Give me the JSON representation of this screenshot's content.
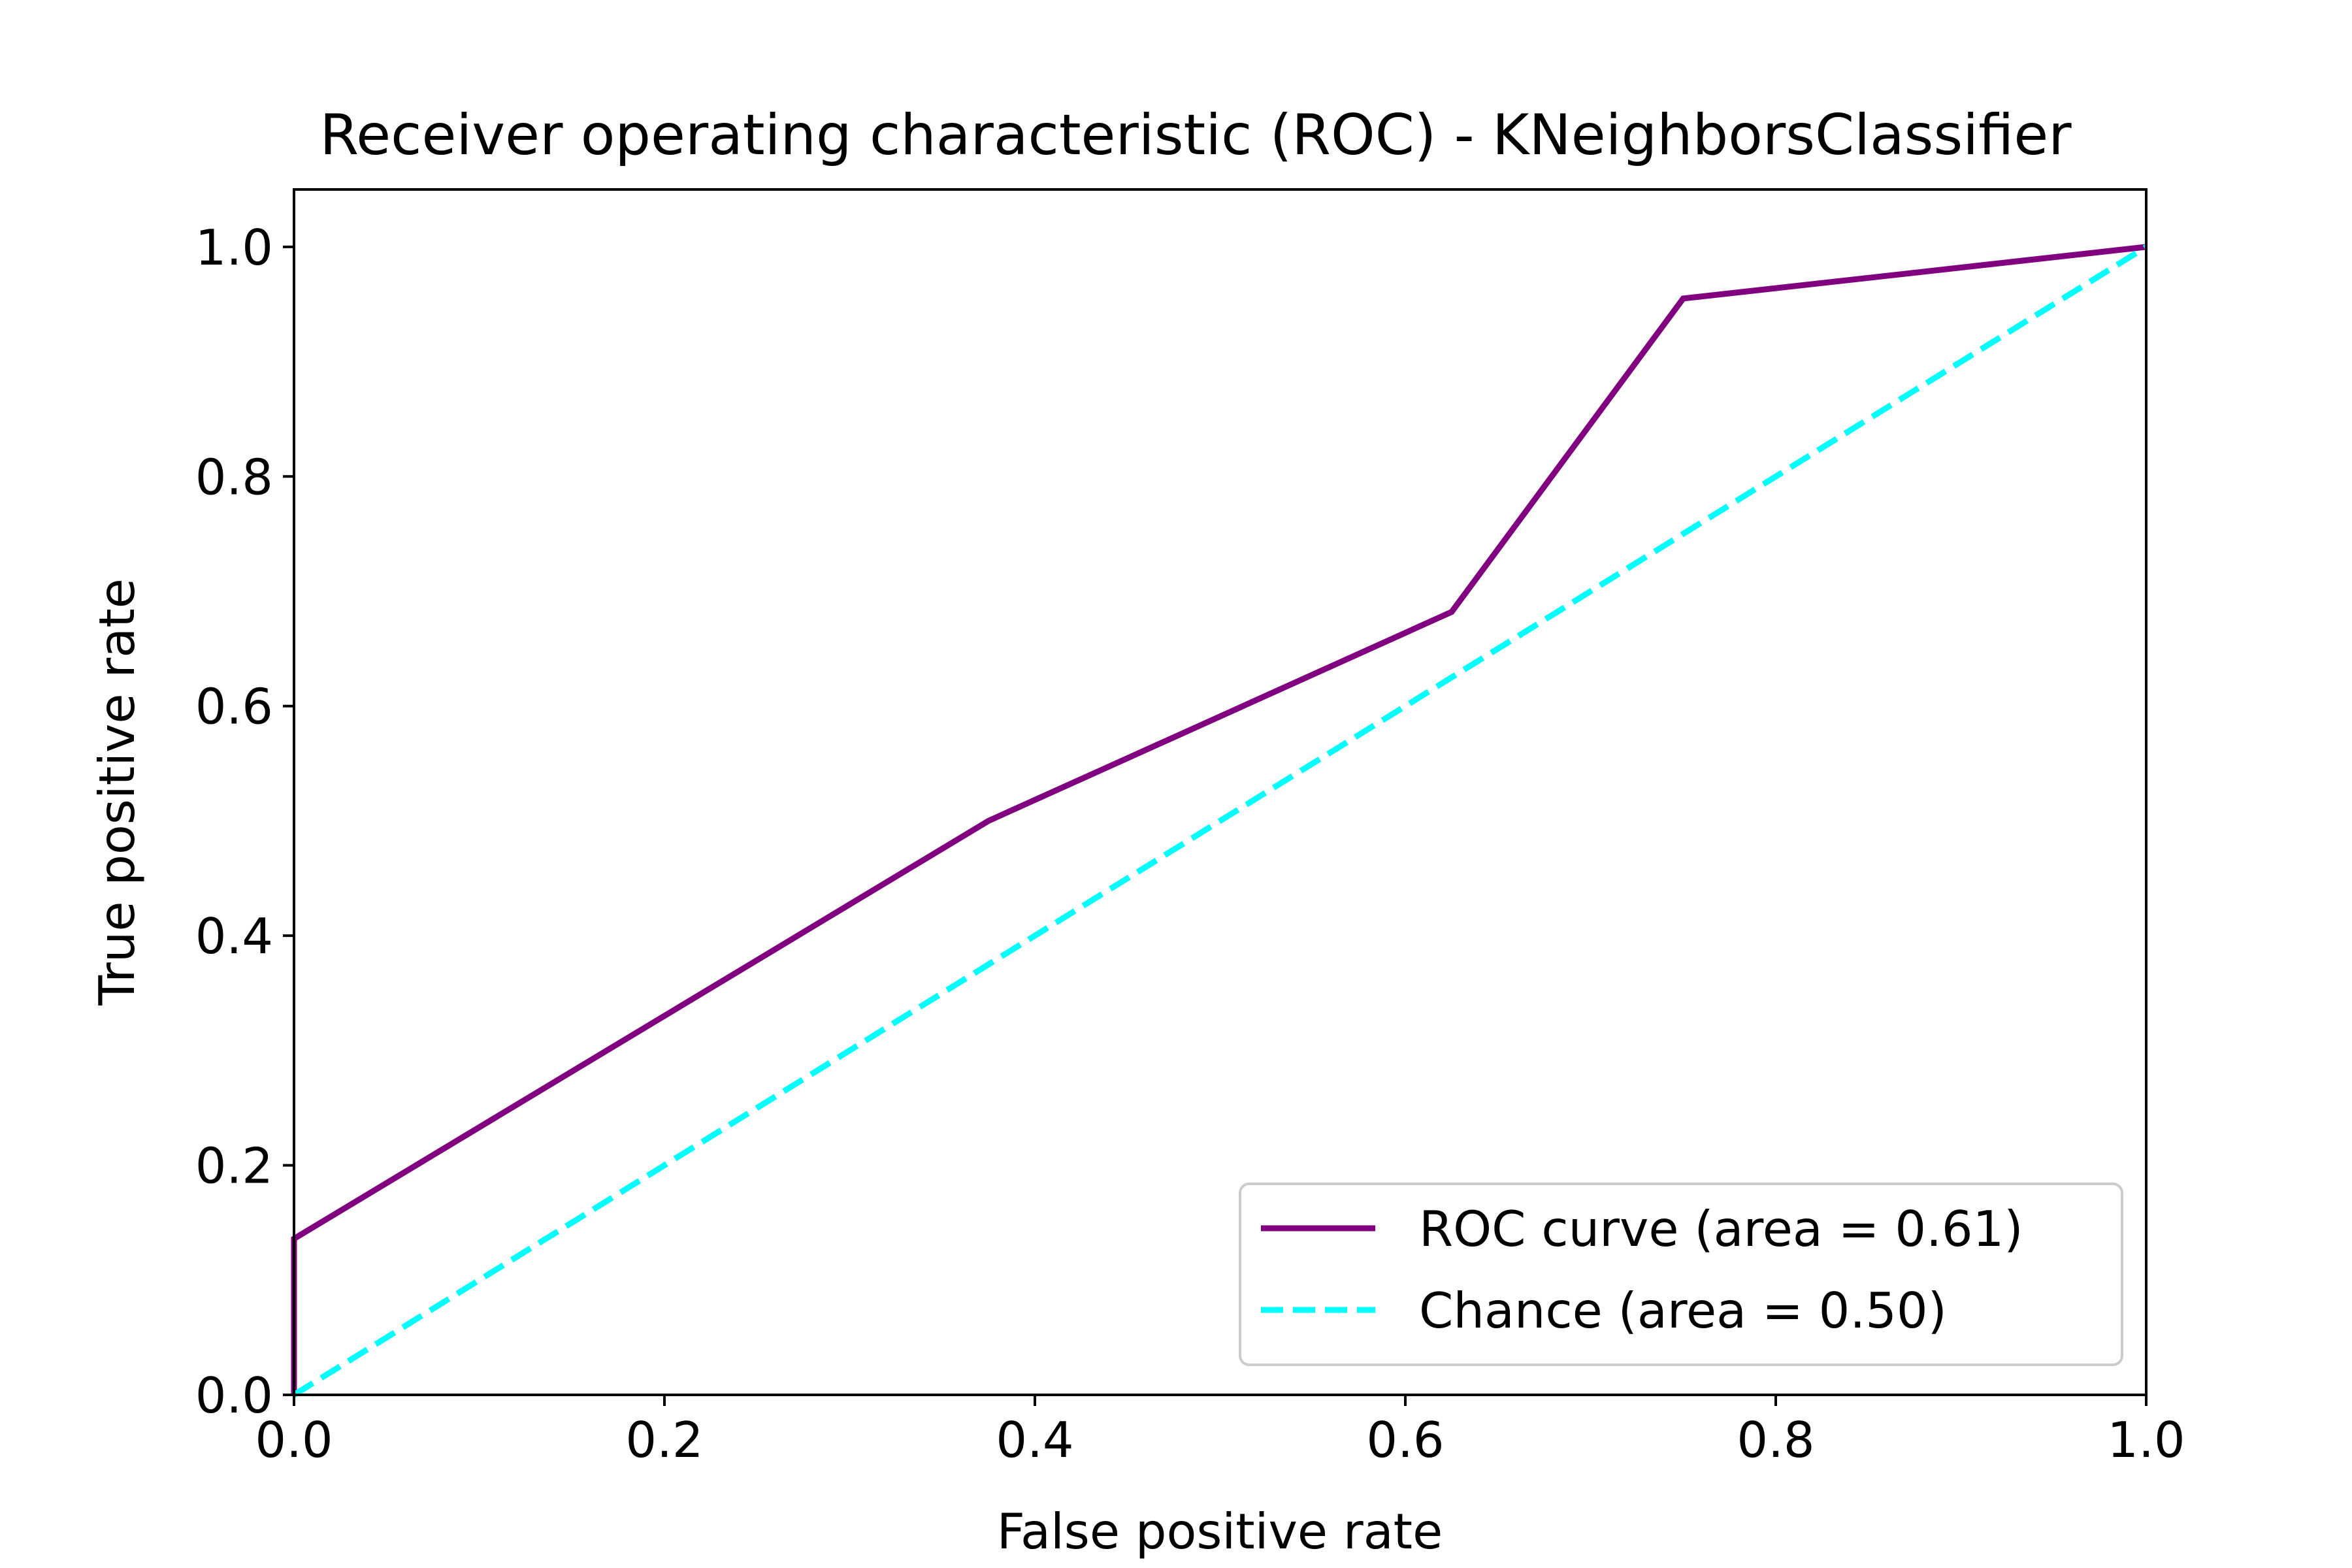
{
  "chart_data": {
    "type": "line",
    "title": "Receiver operating characteristic (ROC) - KNeighborsClassifier",
    "xlabel": "False positive rate",
    "ylabel": "True positive rate",
    "xlim": [
      0.0,
      1.0
    ],
    "ylim": [
      0.0,
      1.05
    ],
    "xticks": [
      0.0,
      0.2,
      0.4,
      0.6,
      0.8,
      1.0
    ],
    "yticks": [
      0.0,
      0.2,
      0.4,
      0.6,
      0.8,
      1.0
    ],
    "xtick_labels": [
      "0.0",
      "0.2",
      "0.4",
      "0.6",
      "0.8",
      "1.0"
    ],
    "ytick_labels": [
      "0.0",
      "0.2",
      "0.4",
      "0.6",
      "0.8",
      "1.0"
    ],
    "grid": false,
    "legend_position": "lower-right",
    "series": [
      {
        "name": "ROC curve (area = 0.61)",
        "color": "#800080",
        "style": "solid",
        "x": [
          0.0,
          0.0,
          0.375,
          0.625,
          0.75,
          1.0
        ],
        "y": [
          0.0,
          0.136,
          0.5,
          0.682,
          0.955,
          1.0
        ]
      },
      {
        "name": "Chance (area = 0.50)",
        "color": "#00FFFF",
        "style": "dashed",
        "x": [
          0.0,
          1.0
        ],
        "y": [
          0.0,
          1.0
        ]
      }
    ]
  }
}
